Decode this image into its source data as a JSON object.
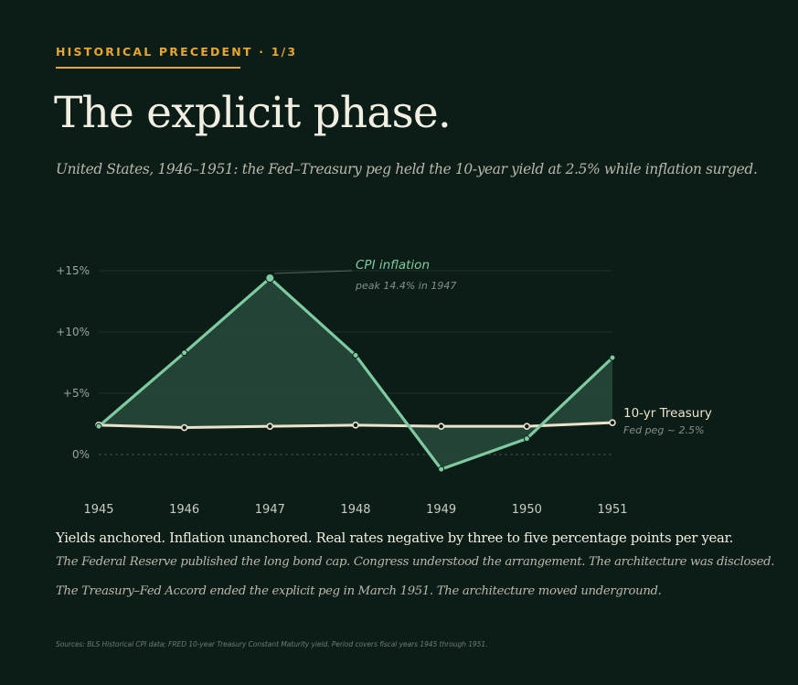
{
  "eyebrow": "HISTORICAL PRECEDENT · 1/3",
  "title": "The explicit phase.",
  "subtitle": "United States, 1946–1951: the Fed–Treasury peg held the 10-year yield at 2.5% while inflation surged.",
  "chart_data": {
    "type": "line",
    "x": [
      "1945",
      "1946",
      "1947",
      "1948",
      "1949",
      "1950",
      "1951"
    ],
    "ylim": [
      -2,
      15
    ],
    "yticks": [
      0,
      5,
      10,
      15
    ],
    "ytick_labels": [
      "0%",
      "+5%",
      "+10%",
      "+15%"
    ],
    "grid": true,
    "series": [
      {
        "name": "CPI inflation",
        "annotation": "peak 14.4% in 1947",
        "values": [
          2.3,
          8.3,
          14.4,
          8.1,
          -1.2,
          1.3,
          7.9
        ],
        "color": "#7ecba1"
      },
      {
        "name": "10-yr Treasury",
        "annotation": "Fed peg ~ 2.5%",
        "values": [
          2.4,
          2.2,
          2.3,
          2.4,
          2.3,
          2.3,
          2.6
        ],
        "color": "#ece3cc"
      }
    ],
    "fill_between_color": "#25463a"
  },
  "lead": "Yields anchored. Inflation unanchored. Real rates negative by three to five percentage points per year.",
  "body1": "The Federal Reserve published the long bond cap. Congress understood the arrangement. The architecture was disclosed.",
  "body2": "The Treasury–Fed Accord ended the explicit peg in March 1951. The architecture moved underground.",
  "sources": "Sources: BLS Historical CPI data; FRED 10-year Treasury Constant Maturity yield. Period covers fiscal years 1945 through 1951."
}
